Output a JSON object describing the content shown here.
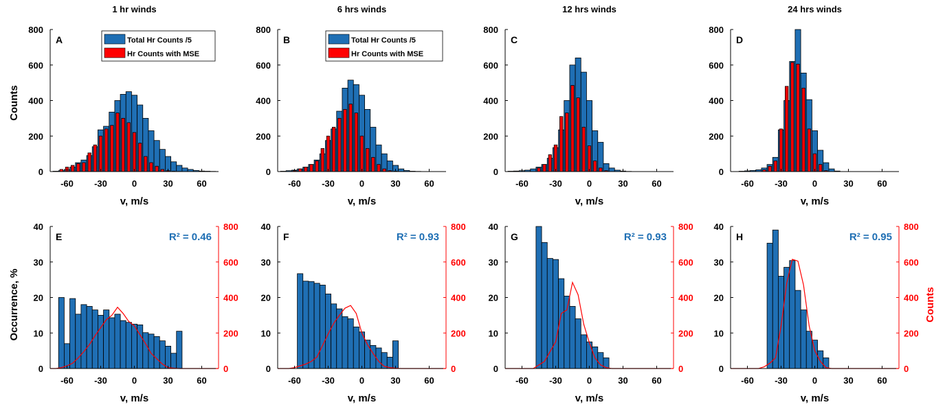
{
  "colors": {
    "blue": "#1f6fb4",
    "red": "#ff0000",
    "axis": "#000000",
    "r2": "#1f6fb4"
  },
  "labels": {
    "counts_ylabel": "Counts",
    "occurrence_ylabel": "Occurrence, %",
    "counts_right_ylabel": "Counts"
  },
  "legend": {
    "blue": "Total Hr Counts /5",
    "red": "Hr Counts with MSE"
  },
  "chart_data": [
    {
      "panel": "A",
      "type": "bar",
      "title": "1 hr winds",
      "xlabel": "v, m/s",
      "ylabel": "Counts",
      "xlim": [
        -75,
        75
      ],
      "ylim": [
        0,
        800
      ],
      "xticks": [
        -60,
        -30,
        0,
        30,
        60
      ],
      "yticks": [
        0,
        200,
        400,
        600,
        800
      ],
      "legend": "top-right",
      "bin_width": 5,
      "series": [
        {
          "name": "Total Hr Counts /5",
          "x": [
            -70,
            -65,
            -60,
            -55,
            -50,
            -45,
            -40,
            -35,
            -30,
            -25,
            -20,
            -15,
            -10,
            -5,
            0,
            5,
            10,
            15,
            20,
            25,
            30,
            35,
            40,
            45,
            50,
            55,
            60,
            65,
            70
          ],
          "values": [
            2,
            5,
            12,
            25,
            50,
            65,
            90,
            140,
            235,
            255,
            335,
            400,
            435,
            450,
            430,
            375,
            300,
            230,
            175,
            125,
            85,
            55,
            35,
            20,
            12,
            6,
            3,
            2,
            1
          ]
        },
        {
          "name": "Hr Counts with MSE",
          "x": [
            -65,
            -60,
            -55,
            -50,
            -45,
            -40,
            -35,
            -30,
            -25,
            -20,
            -15,
            -10,
            -5,
            0,
            5,
            10,
            15,
            20,
            25,
            30,
            35,
            40
          ],
          "values": [
            12,
            25,
            35,
            45,
            50,
            105,
            150,
            200,
            240,
            260,
            330,
            300,
            275,
            220,
            160,
            85,
            50,
            30,
            12,
            5,
            2,
            1
          ]
        }
      ]
    },
    {
      "panel": "B",
      "type": "bar",
      "title": "6 hrs winds",
      "xlabel": "v, m/s",
      "ylabel": "",
      "xlim": [
        -75,
        75
      ],
      "ylim": [
        0,
        800
      ],
      "xticks": [
        -60,
        -30,
        0,
        30,
        60
      ],
      "yticks": [
        0,
        200,
        400,
        600,
        800
      ],
      "legend": "top-right",
      "bin_width": 5,
      "series": [
        {
          "name": "Total Hr Counts /5",
          "x": [
            -70,
            -65,
            -60,
            -55,
            -50,
            -45,
            -40,
            -35,
            -30,
            -25,
            -20,
            -15,
            -10,
            -5,
            0,
            5,
            10,
            15,
            20,
            25,
            30,
            35,
            40,
            45,
            50
          ],
          "values": [
            2,
            5,
            8,
            15,
            25,
            40,
            65,
            100,
            175,
            240,
            340,
            470,
            515,
            490,
            430,
            350,
            250,
            150,
            100,
            60,
            35,
            15,
            6,
            2,
            1
          ]
        },
        {
          "name": "Hr Counts with MSE",
          "x": [
            -60,
            -55,
            -50,
            -45,
            -40,
            -35,
            -30,
            -25,
            -20,
            -15,
            -10,
            -5,
            0,
            5,
            10,
            15,
            20,
            25,
            30
          ],
          "values": [
            5,
            15,
            25,
            40,
            60,
            130,
            200,
            250,
            300,
            350,
            380,
            330,
            200,
            130,
            80,
            40,
            15,
            5,
            2
          ]
        }
      ]
    },
    {
      "panel": "C",
      "type": "bar",
      "title": "12 hrs winds",
      "xlabel": "v, m/s",
      "ylabel": "",
      "xlim": [
        -75,
        75
      ],
      "ylim": [
        0,
        800
      ],
      "xticks": [
        -60,
        -30,
        0,
        30,
        60
      ],
      "yticks": [
        0,
        200,
        400,
        600,
        800
      ],
      "legend": "none",
      "bin_width": 5,
      "series": [
        {
          "name": "Total Hr Counts /5",
          "x": [
            -70,
            -65,
            -60,
            -55,
            -50,
            -45,
            -40,
            -35,
            -30,
            -25,
            -20,
            -15,
            -10,
            -5,
            0,
            5,
            10,
            15,
            20,
            25,
            30,
            35
          ],
          "values": [
            2,
            3,
            5,
            8,
            15,
            25,
            40,
            75,
            135,
            235,
            400,
            600,
            640,
            560,
            400,
            230,
            165,
            45,
            20,
            8,
            3,
            1
          ]
        },
        {
          "name": "Hr Counts with MSE",
          "x": [
            -45,
            -40,
            -35,
            -30,
            -25,
            -20,
            -15,
            -10,
            -5,
            0,
            5,
            10,
            15
          ],
          "values": [
            20,
            40,
            95,
            150,
            310,
            330,
            485,
            415,
            250,
            145,
            60,
            20,
            5
          ]
        }
      ]
    },
    {
      "panel": "D",
      "type": "bar",
      "title": "24 hrs winds",
      "xlabel": "v, m/s",
      "ylabel": "",
      "xlim": [
        -75,
        75
      ],
      "ylim": [
        0,
        800
      ],
      "xticks": [
        -60,
        -30,
        0,
        30,
        60
      ],
      "yticks": [
        0,
        200,
        400,
        600,
        800
      ],
      "legend": "none",
      "bin_width": 5,
      "series": [
        {
          "name": "Total Hr Counts /5",
          "x": [
            -65,
            -60,
            -55,
            -50,
            -45,
            -40,
            -35,
            -30,
            -25,
            -20,
            -15,
            -10,
            -5,
            0,
            5,
            10,
            15,
            20
          ],
          "values": [
            2,
            4,
            6,
            10,
            20,
            40,
            80,
            235,
            400,
            620,
            800,
            555,
            405,
            230,
            120,
            50,
            15,
            3
          ]
        },
        {
          "name": "Hr Counts with MSE",
          "x": [
            -45,
            -40,
            -35,
            -30,
            -25,
            -20,
            -15,
            -10,
            -5,
            0,
            5,
            10
          ],
          "values": [
            10,
            30,
            60,
            240,
            480,
            615,
            605,
            470,
            240,
            100,
            40,
            5
          ]
        }
      ]
    },
    {
      "panel": "E",
      "type": "bar",
      "xlabel": "v, m/s",
      "ylabel": "Occurrence, %",
      "xlim": [
        -75,
        75
      ],
      "ylim": [
        0,
        40
      ],
      "y2lim": [
        0,
        800
      ],
      "xticks": [
        -60,
        -30,
        0,
        30,
        60
      ],
      "yticks": [
        0,
        10,
        20,
        30,
        40
      ],
      "y2ticks": [
        0,
        200,
        400,
        600,
        800
      ],
      "annotation": "R² = 0.46",
      "bin_width": 5,
      "bars": {
        "x": [
          -65,
          -60,
          -55,
          -50,
          -45,
          -40,
          -35,
          -30,
          -25,
          -20,
          -15,
          -10,
          -5,
          0,
          5,
          10,
          15,
          20,
          25,
          30,
          35,
          40
        ],
        "values": [
          20,
          7,
          19.7,
          15.3,
          18,
          17.5,
          16.5,
          15,
          16.5,
          14.3,
          15.3,
          13.5,
          13,
          12.5,
          12.3,
          10.1,
          9.7,
          9,
          7.8,
          6.3,
          4.3,
          10.5
        ]
      },
      "line": {
        "x": [
          -75,
          -70,
          -65,
          -60,
          -55,
          -50,
          -45,
          -40,
          -35,
          -30,
          -25,
          -20,
          -15,
          -10,
          -5,
          0,
          5,
          10,
          15,
          20,
          25,
          30,
          35,
          40,
          45,
          50,
          55,
          60,
          65,
          70,
          75
        ],
        "values": [
          0,
          0,
          5,
          15,
          30,
          60,
          95,
          135,
          185,
          230,
          275,
          300,
          345,
          310,
          265,
          240,
          190,
          140,
          85,
          55,
          25,
          5,
          2,
          0,
          0,
          0,
          0,
          0,
          0,
          0,
          0
        ]
      }
    },
    {
      "panel": "F",
      "type": "bar",
      "xlabel": "v, m/s",
      "ylabel": "",
      "xlim": [
        -75,
        75
      ],
      "ylim": [
        0,
        40
      ],
      "y2lim": [
        0,
        800
      ],
      "xticks": [
        -60,
        -30,
        0,
        30,
        60
      ],
      "yticks": [
        0,
        10,
        20,
        30,
        40
      ],
      "y2ticks": [
        0,
        200,
        400,
        600,
        800
      ],
      "annotation": "R² = 0.93",
      "bin_width": 5,
      "bars": {
        "x": [
          -55,
          -50,
          -45,
          -40,
          -35,
          -30,
          -25,
          -20,
          -15,
          -10,
          -5,
          0,
          5,
          10,
          15,
          20,
          25,
          30
        ],
        "values": [
          26.7,
          24.6,
          24.5,
          24,
          23.5,
          21,
          18.2,
          16.8,
          14.6,
          14,
          11.7,
          10.3,
          8,
          6.5,
          5.8,
          4.5,
          3.2,
          7.8
        ]
      },
      "line": {
        "x": [
          -75,
          -70,
          -65,
          -60,
          -55,
          -50,
          -45,
          -40,
          -35,
          -30,
          -25,
          -20,
          -15,
          -10,
          -5,
          0,
          5,
          10,
          15,
          20,
          25,
          30,
          35,
          40,
          45,
          50,
          55,
          60,
          65,
          70,
          75
        ],
        "values": [
          0,
          0,
          0,
          5,
          15,
          25,
          40,
          65,
          130,
          195,
          255,
          300,
          340,
          355,
          310,
          200,
          135,
          85,
          40,
          12,
          5,
          2,
          0,
          0,
          0,
          0,
          0,
          0,
          0,
          0,
          0
        ]
      }
    },
    {
      "panel": "G",
      "type": "bar",
      "xlabel": "v, m/s",
      "ylabel": "",
      "xlim": [
        -75,
        75
      ],
      "ylim": [
        0,
        40
      ],
      "y2lim": [
        0,
        800
      ],
      "xticks": [
        -60,
        -30,
        0,
        30,
        60
      ],
      "yticks": [
        0,
        10,
        20,
        30,
        40
      ],
      "y2ticks": [
        0,
        200,
        400,
        600,
        800
      ],
      "annotation": "R² = 0.93",
      "bin_width": 5,
      "bars": {
        "x": [
          -45,
          -40,
          -35,
          -30,
          -25,
          -20,
          -15,
          -10,
          -5,
          0,
          5,
          10,
          15
        ],
        "values": [
          40,
          35.5,
          31,
          30.7,
          25.3,
          20.4,
          17.5,
          14,
          9.5,
          7.5,
          6.1,
          4.5,
          3
        ]
      },
      "line": {
        "x": [
          -75,
          -70,
          -65,
          -60,
          -55,
          -50,
          -45,
          -40,
          -35,
          -30,
          -25,
          -20,
          -15,
          -10,
          -5,
          0,
          5,
          10,
          15,
          20,
          25,
          30,
          35,
          40,
          45,
          50,
          55,
          60,
          65,
          70,
          75
        ],
        "values": [
          0,
          0,
          0,
          0,
          0,
          0,
          20,
          40,
          95,
          150,
          310,
          330,
          485,
          415,
          250,
          145,
          60,
          20,
          5,
          0,
          0,
          0,
          0,
          0,
          0,
          0,
          0,
          0,
          0,
          0,
          0
        ]
      }
    },
    {
      "panel": "H",
      "type": "bar",
      "xlabel": "v, m/s",
      "ylabel": "",
      "y2label": "Counts",
      "xlim": [
        -75,
        75
      ],
      "ylim": [
        0,
        40
      ],
      "y2lim": [
        0,
        800
      ],
      "xticks": [
        -60,
        -30,
        0,
        30,
        60
      ],
      "yticks": [
        0,
        10,
        20,
        30,
        40
      ],
      "y2ticks": [
        0,
        200,
        400,
        600,
        800
      ],
      "annotation": "R² = 0.95",
      "bin_width": 5,
      "bars": {
        "x": [
          -40,
          -35,
          -30,
          -25,
          -20,
          -15,
          -10,
          -5,
          0,
          5,
          10
        ],
        "values": [
          35.3,
          39,
          26,
          28.5,
          30.4,
          22,
          16.5,
          10.5,
          8,
          5,
          3
        ]
      },
      "line": {
        "x": [
          -75,
          -70,
          -65,
          -60,
          -55,
          -50,
          -45,
          -40,
          -35,
          -30,
          -25,
          -20,
          -15,
          -10,
          -5,
          0,
          5,
          10,
          15,
          20,
          25,
          30,
          35,
          40,
          45,
          50,
          55,
          60,
          65,
          70,
          75
        ],
        "values": [
          0,
          0,
          0,
          0,
          0,
          0,
          10,
          30,
          60,
          240,
          480,
          615,
          605,
          470,
          240,
          100,
          40,
          5,
          0,
          0,
          0,
          0,
          0,
          0,
          0,
          0,
          0,
          0,
          0,
          0,
          0
        ]
      }
    }
  ]
}
